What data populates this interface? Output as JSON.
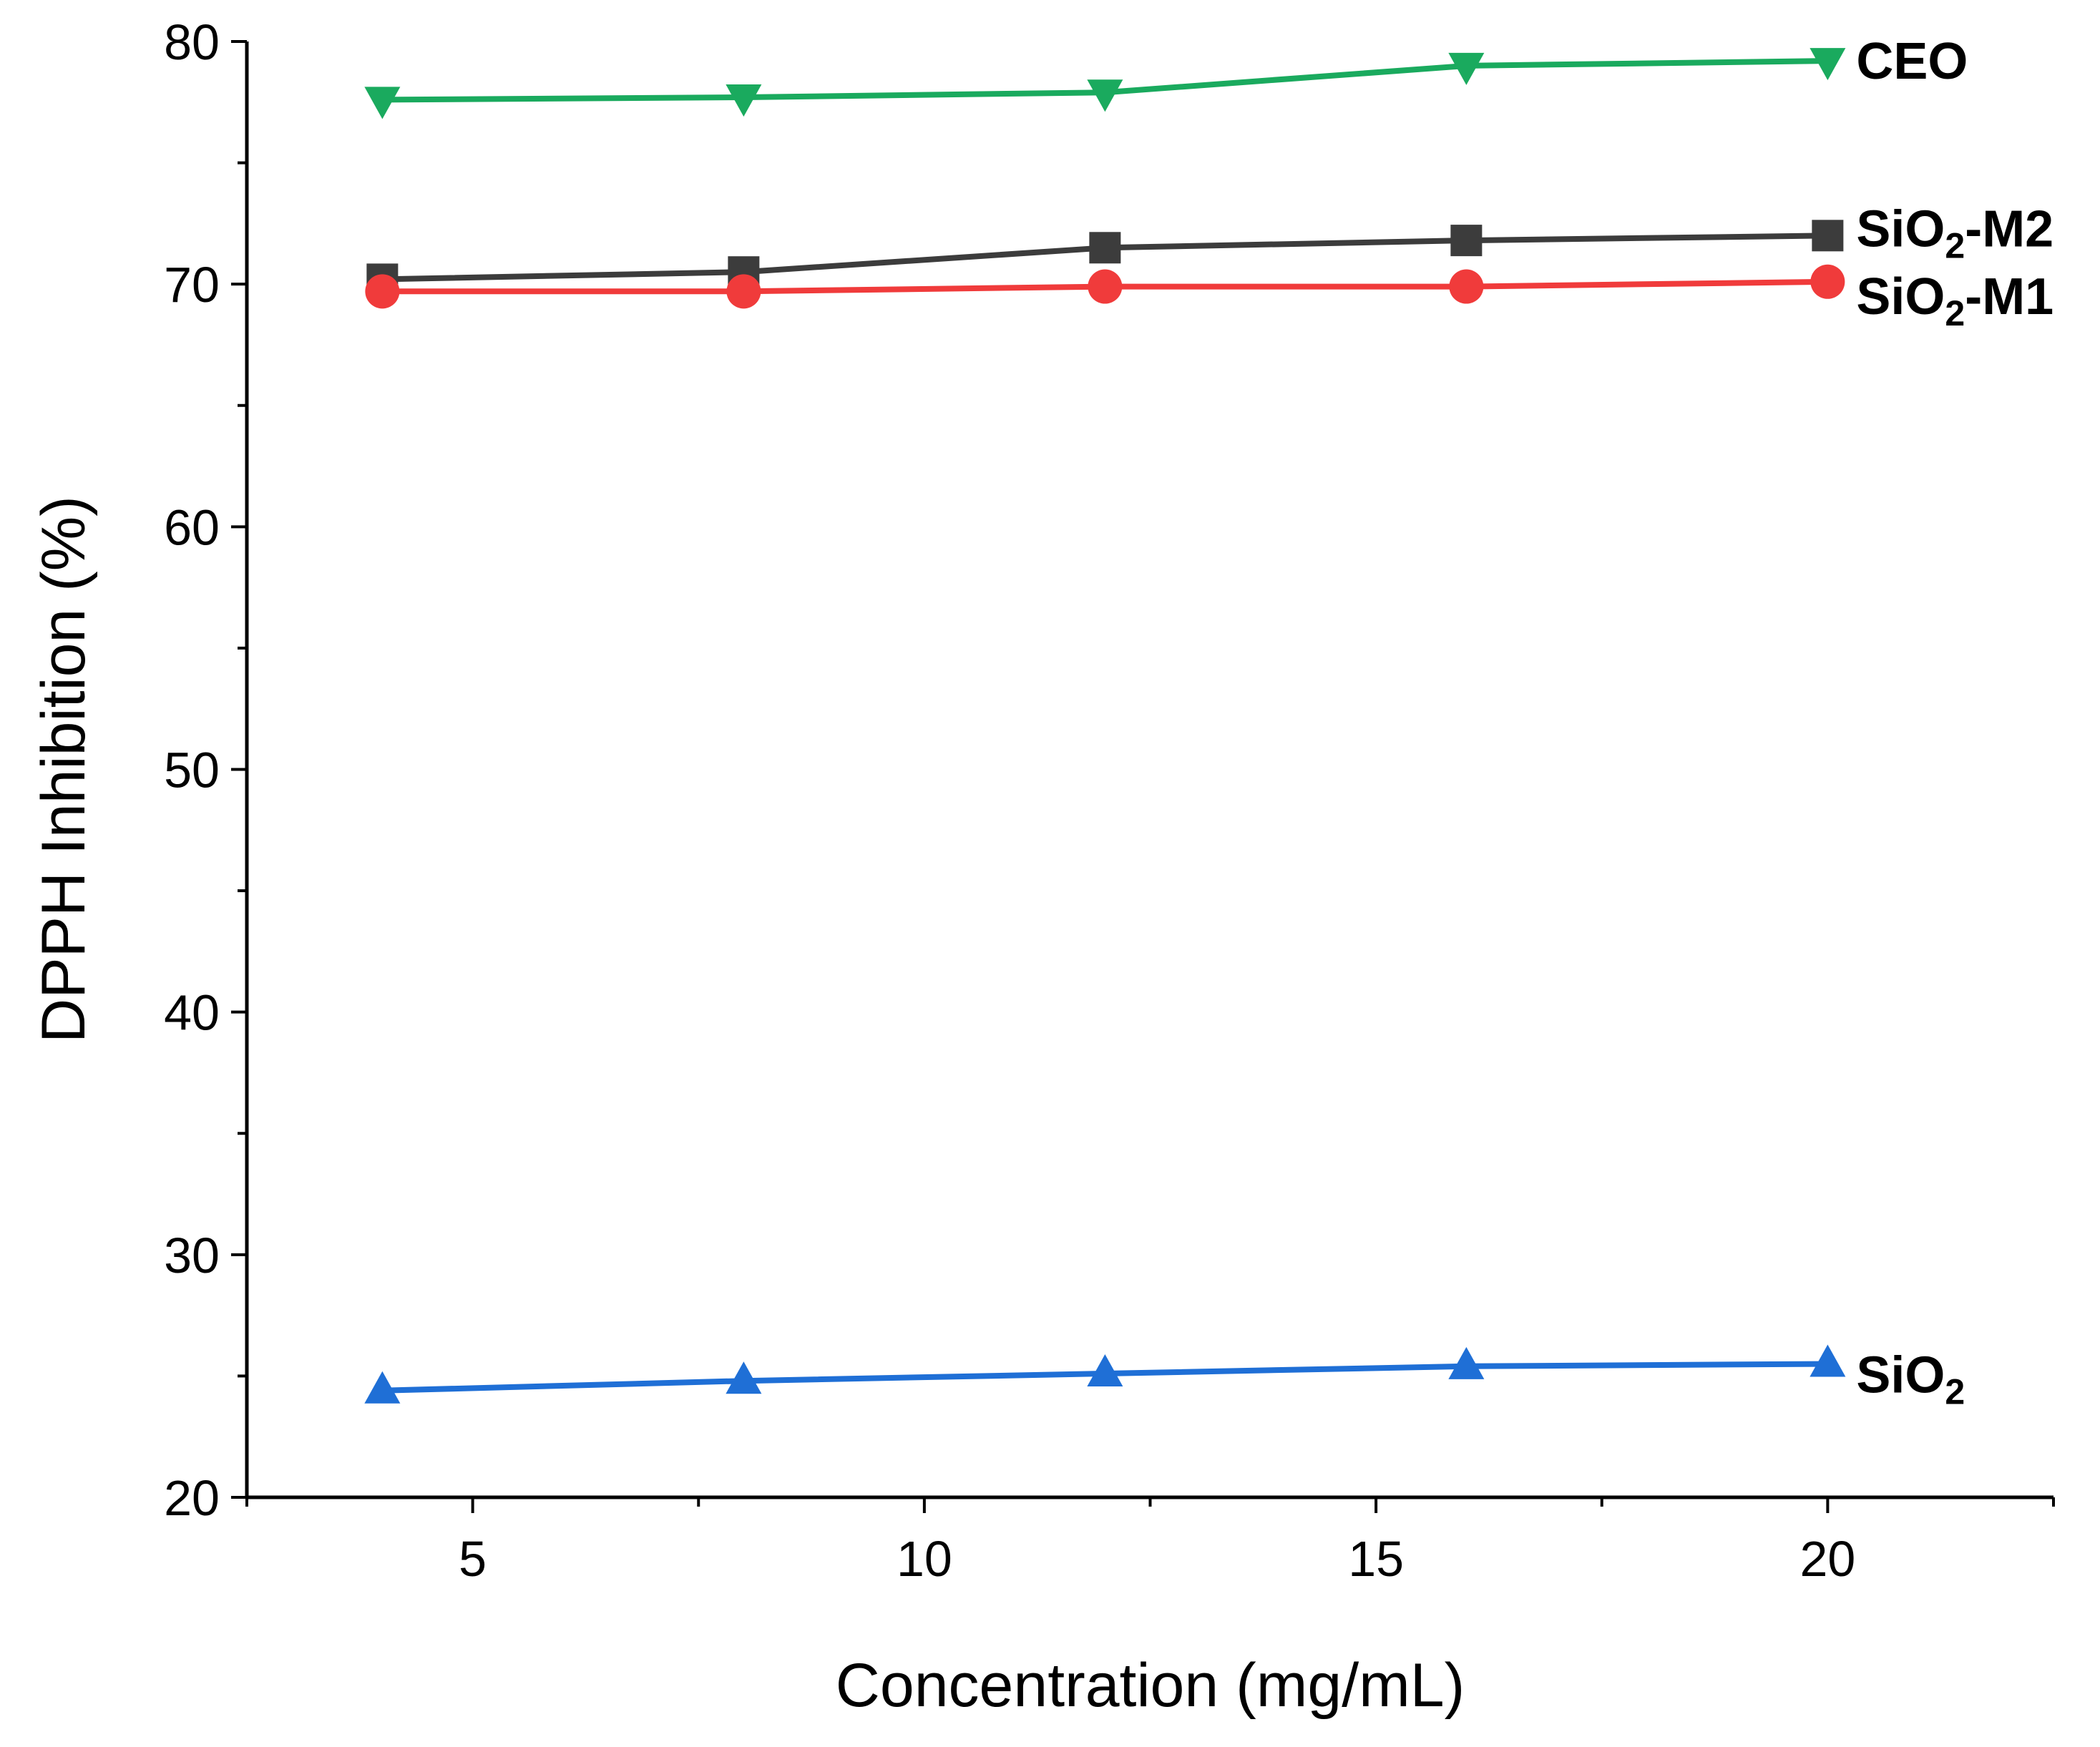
{
  "chart_data": {
    "type": "line",
    "title": "",
    "xlabel": "Concentration (mg/mL)",
    "ylabel": "DPPH Inhibition (%)",
    "xlim": [
      2.5,
      22.5
    ],
    "ylim": [
      20,
      80
    ],
    "xticks": [
      5,
      10,
      15,
      20
    ],
    "yticks": [
      20,
      30,
      40,
      50,
      60,
      70,
      80
    ],
    "grid": false,
    "legend": "inline labels at right end of each series",
    "x": [
      4,
      8,
      12,
      16,
      20
    ],
    "series": [
      {
        "id": "ceo",
        "name": "CEO",
        "label_main": "CEO",
        "label_sub": "",
        "label_suffix": "",
        "color": "#1aaa5e",
        "marker": "triangle-down",
        "values": [
          77.6,
          77.7,
          77.9,
          79.0,
          79.2
        ]
      },
      {
        "id": "m2",
        "name": "SiO2-M2",
        "label_main": "SiO",
        "label_sub": "2",
        "label_suffix": "-M2",
        "color": "#3c3c3c",
        "marker": "square",
        "values": [
          70.2,
          70.5,
          71.5,
          71.8,
          72.0
        ]
      },
      {
        "id": "m1",
        "name": "SiO2-M1",
        "label_main": "SiO",
        "label_sub": "2",
        "label_suffix": "-M1",
        "color": "#f03b3b",
        "marker": "circle",
        "values": [
          69.7,
          69.7,
          69.9,
          69.9,
          70.1
        ]
      },
      {
        "id": "sio2",
        "name": "SiO2",
        "label_main": "SiO",
        "label_sub": "2",
        "label_suffix": "",
        "color": "#1f6fd6",
        "marker": "triangle-up",
        "values": [
          24.4,
          24.8,
          25.1,
          25.4,
          25.5
        ]
      }
    ]
  }
}
